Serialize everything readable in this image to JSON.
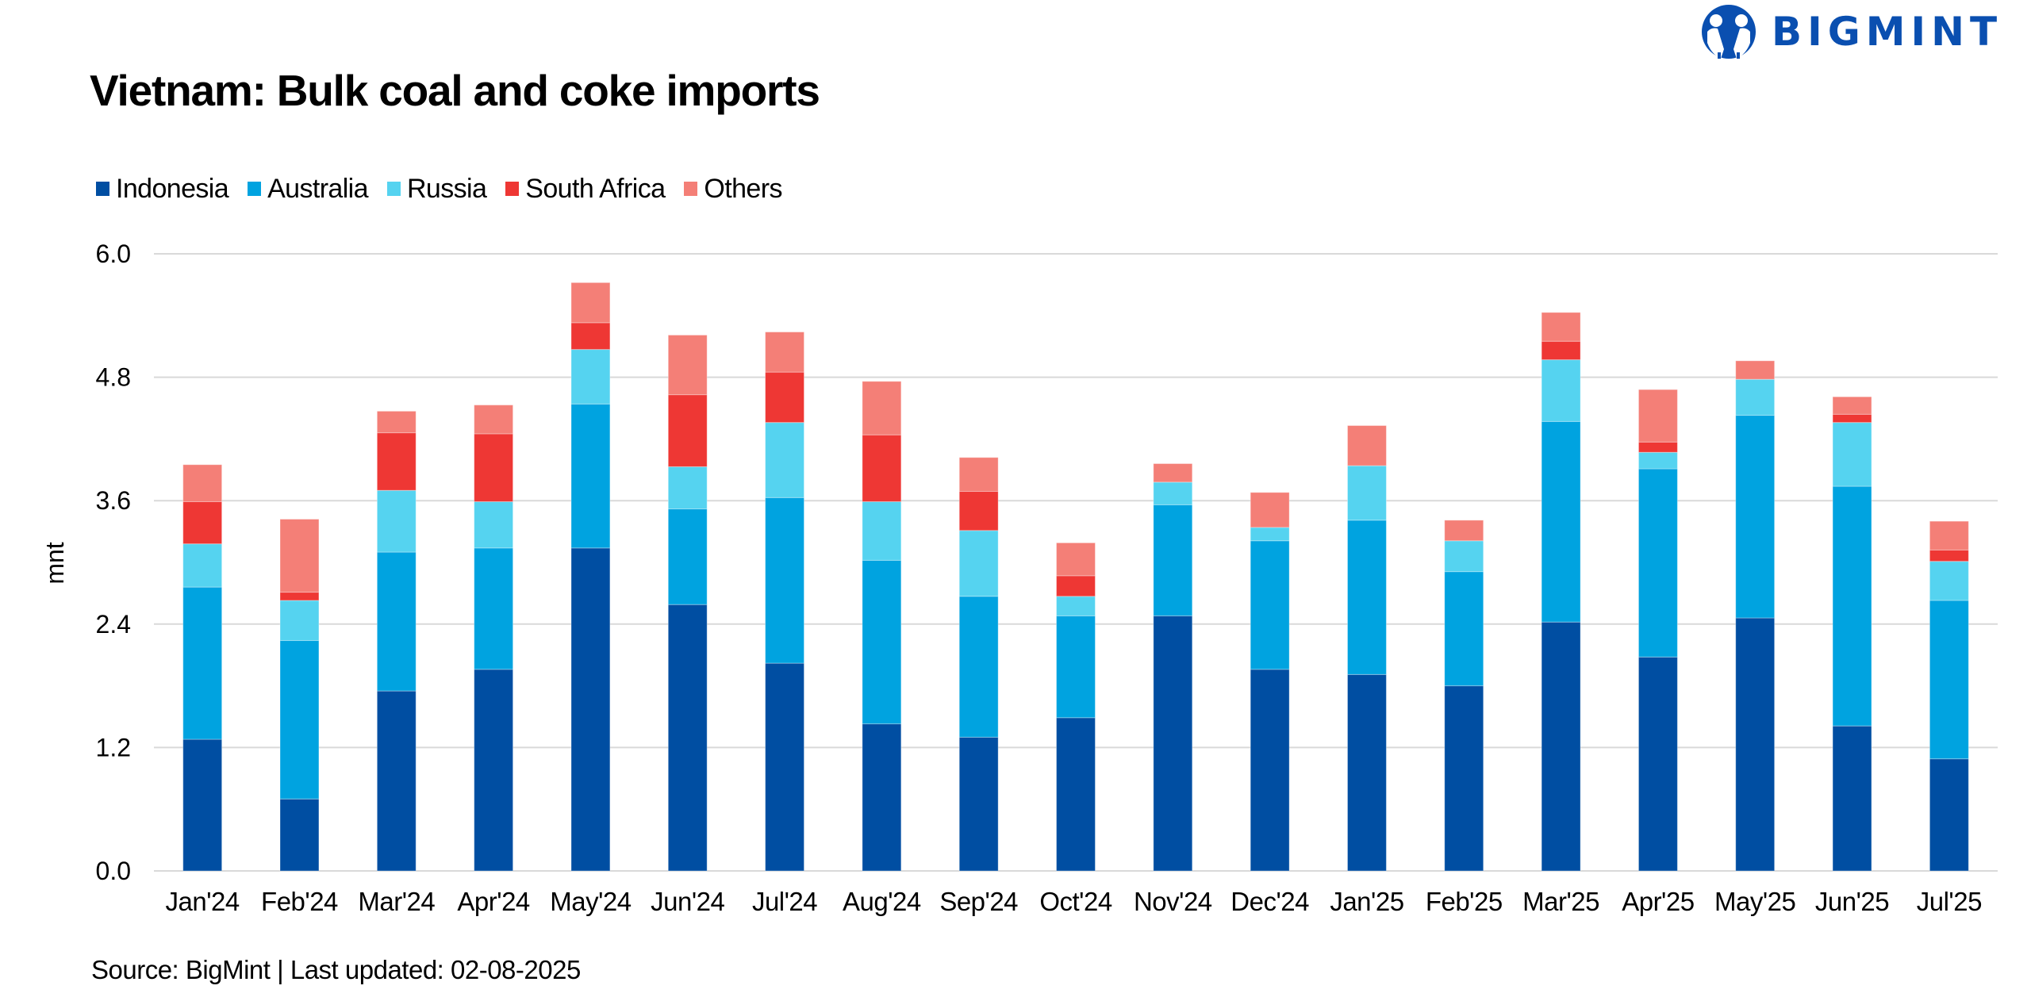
{
  "brand": {
    "name": "BIGMINT",
    "color": "#0a4fb0"
  },
  "footer": {
    "source": "Source: BigMint | Last updated: 02-08-2025"
  },
  "chart_data": {
    "type": "bar",
    "stacked": true,
    "title": "Vietnam: Bulk coal and coke imports",
    "xlabel": "",
    "ylabel": "mnt",
    "ylim": [
      0,
      6.0
    ],
    "yticks": [
      "0.0",
      "1.2",
      "2.4",
      "3.6",
      "4.8",
      "6.0"
    ],
    "ytick_values": [
      0,
      1.2,
      2.4,
      3.6,
      4.8,
      6.0
    ],
    "grid": true,
    "legend_position": "top-left",
    "categories": [
      "Jan'24",
      "Feb'24",
      "Mar'24",
      "Apr'24",
      "May'24",
      "Jun'24",
      "Jul'24",
      "Aug'24",
      "Sep'24",
      "Oct'24",
      "Nov'24",
      "Dec'24",
      "Jan'25",
      "Feb'25",
      "Mar'25",
      "Apr'25",
      "May'25",
      "Jun'25",
      "Jul'25"
    ],
    "series": [
      {
        "name": "Indonesia",
        "color": "#004ea2",
        "values": [
          1.28,
          0.7,
          1.75,
          1.96,
          3.14,
          2.59,
          2.02,
          1.43,
          1.3,
          1.49,
          2.48,
          1.96,
          1.91,
          1.8,
          2.42,
          2.08,
          2.46,
          1.41,
          1.09
        ]
      },
      {
        "name": "Australia",
        "color": "#00a3e0",
        "values": [
          1.48,
          1.54,
          1.35,
          1.18,
          1.4,
          0.93,
          1.61,
          1.59,
          1.37,
          0.99,
          1.08,
          1.25,
          1.5,
          1.11,
          1.95,
          1.83,
          1.97,
          2.33,
          1.54
        ]
      },
      {
        "name": "Russia",
        "color": "#55d3f0",
        "values": [
          0.42,
          0.39,
          0.6,
          0.45,
          0.53,
          0.41,
          0.73,
          0.57,
          0.64,
          0.19,
          0.22,
          0.13,
          0.53,
          0.3,
          0.6,
          0.16,
          0.35,
          0.62,
          0.38
        ]
      },
      {
        "name": "South Africa",
        "color": "#ee3734",
        "values": [
          0.41,
          0.08,
          0.56,
          0.66,
          0.26,
          0.7,
          0.49,
          0.65,
          0.38,
          0.2,
          0.0,
          0.0,
          0.0,
          0.0,
          0.18,
          0.1,
          0.0,
          0.08,
          0.11
        ]
      },
      {
        "name": "Others",
        "color": "#f47f77",
        "values": [
          0.36,
          0.71,
          0.21,
          0.28,
          0.39,
          0.58,
          0.39,
          0.52,
          0.33,
          0.32,
          0.18,
          0.34,
          0.39,
          0.2,
          0.28,
          0.51,
          0.18,
          0.17,
          0.28
        ]
      }
    ]
  }
}
